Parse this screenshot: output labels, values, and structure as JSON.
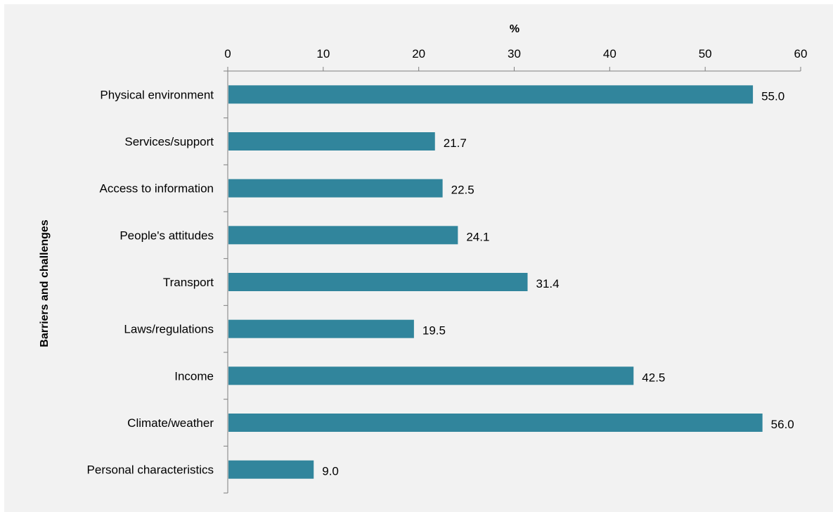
{
  "figure_title": "",
  "chart_data": {
    "type": "bar",
    "orientation": "horizontal",
    "title": "",
    "xlabel": "%",
    "ylabel": "Barriers and challenges",
    "xlim": [
      0,
      60
    ],
    "x_ticks": [
      0,
      10,
      20,
      30,
      40,
      50,
      60
    ],
    "x_axis_position": "top",
    "categories": [
      "Physical environment",
      "Services/support",
      "Access to information",
      "People's attitudes",
      "Transport",
      "Laws/regulations",
      "Income",
      "Climate/weather",
      "Personal characteristics"
    ],
    "values": [
      55.0,
      21.7,
      22.5,
      24.1,
      31.4,
      19.5,
      42.5,
      56.0,
      9.0
    ],
    "data_labels": [
      "55.0",
      "21.7",
      "22.5",
      "24.1",
      "31.4",
      "19.5",
      "42.5",
      "56.0",
      "9.0"
    ],
    "bar_color": "#31859c",
    "grid": false,
    "legend": "none"
  }
}
